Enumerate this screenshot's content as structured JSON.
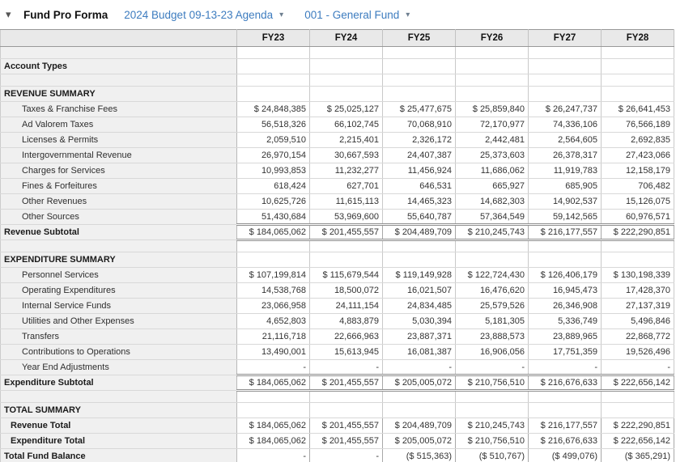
{
  "toolbar": {
    "title": "Fund Pro Forma",
    "dropdowns": [
      {
        "label": "2024 Budget 09-13-23 Agenda"
      },
      {
        "label": "001 - General Fund"
      }
    ]
  },
  "icons": {
    "collapse": "▾",
    "dropdown_caret": "▾"
  },
  "colors": {
    "accent_blue": "#3d7cbf",
    "header_row_bg": "#e9e9e9",
    "label_column_bg": "#f0f0f0",
    "gridline": "#c9c9c9",
    "strong_border": "#8f8f8f"
  },
  "table": {
    "columns": [
      "FY23",
      "FY24",
      "FY25",
      "FY26",
      "FY27",
      "FY28"
    ],
    "rows": [
      {
        "type": "blank",
        "label": "",
        "values": [
          "",
          "",
          "",
          "",
          "",
          ""
        ]
      },
      {
        "type": "header",
        "label": "Account Types",
        "values": [
          "",
          "",
          "",
          "",
          "",
          ""
        ]
      },
      {
        "type": "blank",
        "label": "",
        "values": [
          "",
          "",
          "",
          "",
          "",
          ""
        ]
      },
      {
        "type": "header",
        "label": "REVENUE SUMMARY",
        "values": [
          "",
          "",
          "",
          "",
          "",
          ""
        ]
      },
      {
        "type": "detail",
        "label": "Taxes & Franchise Fees",
        "values": [
          "$ 24,848,385",
          "$ 25,025,127",
          "$ 25,477,675",
          "$ 25,859,840",
          "$ 26,247,737",
          "$ 26,641,453"
        ]
      },
      {
        "type": "detail",
        "label": "Ad Valorem Taxes",
        "values": [
          "56,518,326",
          "66,102,745",
          "70,068,910",
          "72,170,977",
          "74,336,106",
          "76,566,189"
        ]
      },
      {
        "type": "detail",
        "label": "Licenses & Permits",
        "values": [
          "2,059,510",
          "2,215,401",
          "2,326,172",
          "2,442,481",
          "2,564,605",
          "2,692,835"
        ]
      },
      {
        "type": "detail",
        "label": "Intergovernmental Revenue",
        "values": [
          "26,970,154",
          "30,667,593",
          "24,407,387",
          "25,373,603",
          "26,378,317",
          "27,423,066"
        ]
      },
      {
        "type": "detail",
        "label": "Charges for Services",
        "values": [
          "10,993,853",
          "11,232,277",
          "11,456,924",
          "11,686,062",
          "11,919,783",
          "12,158,179"
        ]
      },
      {
        "type": "detail",
        "label": "Fines & Forfeitures",
        "values": [
          "618,424",
          "627,701",
          "646,531",
          "665,927",
          "685,905",
          "706,482"
        ]
      },
      {
        "type": "detail",
        "label": "Other Revenues",
        "values": [
          "10,625,726",
          "11,615,113",
          "14,465,323",
          "14,682,303",
          "14,902,537",
          "15,126,075"
        ]
      },
      {
        "type": "detail",
        "label": "Other Sources",
        "values": [
          "51,430,684",
          "53,969,600",
          "55,640,787",
          "57,364,549",
          "59,142,565",
          "60,976,571"
        ]
      },
      {
        "type": "subtotal",
        "label": "Revenue Subtotal",
        "values": [
          "$ 184,065,062",
          "$ 201,455,557",
          "$ 204,489,709",
          "$ 210,245,743",
          "$ 216,177,557",
          "$ 222,290,851"
        ]
      },
      {
        "type": "blank",
        "label": "",
        "values": [
          "",
          "",
          "",
          "",
          "",
          ""
        ]
      },
      {
        "type": "header",
        "label": "EXPENDITURE SUMMARY",
        "values": [
          "",
          "",
          "",
          "",
          "",
          ""
        ]
      },
      {
        "type": "detail",
        "label": "Personnel Services",
        "values": [
          "$ 107,199,814",
          "$ 115,679,544",
          "$ 119,149,928",
          "$ 122,724,430",
          "$ 126,406,179",
          "$ 130,198,339"
        ]
      },
      {
        "type": "detail",
        "label": "Operating Expenditures",
        "values": [
          "14,538,768",
          "18,500,072",
          "16,021,507",
          "16,476,620",
          "16,945,473",
          "17,428,370"
        ]
      },
      {
        "type": "detail",
        "label": "Internal Service Funds",
        "values": [
          "23,066,958",
          "24,111,154",
          "24,834,485",
          "25,579,526",
          "26,346,908",
          "27,137,319"
        ]
      },
      {
        "type": "detail",
        "label": "Utilities and Other Expenses",
        "values": [
          "4,652,803",
          "4,883,879",
          "5,030,394",
          "5,181,305",
          "5,336,749",
          "5,496,846"
        ]
      },
      {
        "type": "detail",
        "label": "Transfers",
        "values": [
          "21,116,718",
          "22,666,963",
          "23,887,371",
          "23,888,573",
          "23,889,965",
          "22,868,772"
        ]
      },
      {
        "type": "detail",
        "label": "Contributions to Operations",
        "values": [
          "13,490,001",
          "15,613,945",
          "16,081,387",
          "16,906,056",
          "17,751,359",
          "19,526,496"
        ]
      },
      {
        "type": "detail",
        "label": "Year End Adjustments",
        "values": [
          "-",
          "-",
          "-",
          "-",
          "-",
          "-"
        ]
      },
      {
        "type": "subtotal",
        "label": "Expenditure Subtotal",
        "values": [
          "$ 184,065,062",
          "$ 201,455,557",
          "$ 205,005,072",
          "$ 210,756,510",
          "$ 216,676,633",
          "$ 222,656,142"
        ]
      },
      {
        "type": "blank",
        "label": "",
        "values": [
          "",
          "",
          "",
          "",
          "",
          ""
        ]
      },
      {
        "type": "header",
        "label": "TOTAL SUMMARY",
        "values": [
          "",
          "",
          "",
          "",
          "",
          ""
        ]
      },
      {
        "type": "total",
        "label": "Revenue Total",
        "values": [
          "$ 184,065,062",
          "$ 201,455,557",
          "$ 204,489,709",
          "$ 210,245,743",
          "$ 216,177,557",
          "$ 222,290,851"
        ]
      },
      {
        "type": "total",
        "label": "Expenditure Total",
        "values": [
          "$ 184,065,062",
          "$ 201,455,557",
          "$ 205,005,072",
          "$ 210,756,510",
          "$ 216,676,633",
          "$ 222,656,142"
        ]
      },
      {
        "type": "grand",
        "label": "Total Fund Balance",
        "values": [
          "-",
          "-",
          "($ 515,363)",
          "($ 510,767)",
          "($ 499,076)",
          "($ 365,291)"
        ]
      }
    ]
  }
}
